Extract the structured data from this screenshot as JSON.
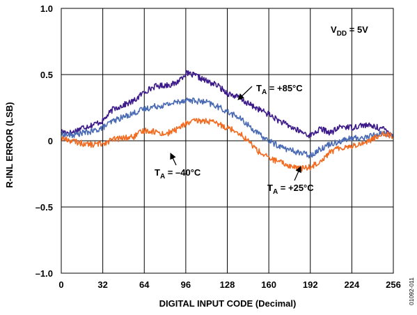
{
  "chart_data": {
    "type": "line",
    "title": "",
    "xlabel": "DIGITAL INPUT CODE (Decimal)",
    "ylabel": "R-INL ERROR (LSB)",
    "xlim": [
      0,
      256
    ],
    "ylim": [
      -1.0,
      1.0
    ],
    "grid": true,
    "x_ticks": [
      0,
      32,
      64,
      96,
      128,
      160,
      192,
      224,
      256
    ],
    "x_tick_labels": [
      "0",
      "32",
      "64",
      "96",
      "128",
      "160",
      "192",
      "224",
      "256"
    ],
    "y_ticks": [
      1.0,
      0.5,
      0,
      -0.5,
      -1.0
    ],
    "y_tick_labels": [
      "1.0",
      "0.5",
      "0",
      "–0.5",
      "–1.0"
    ],
    "colors": {
      "t85": "#3d1a8a",
      "t25": "#4a6ab4",
      "tm40": "#f26b21"
    },
    "series": [
      {
        "color_key": "t85",
        "x": [
          0,
          8,
          16,
          24,
          32,
          40,
          48,
          56,
          64,
          72,
          80,
          88,
          96,
          104,
          112,
          120,
          128,
          136,
          144,
          152,
          160,
          168,
          176,
          184,
          192,
          200,
          208,
          216,
          224,
          232,
          240,
          248,
          256
        ],
        "y": [
          0.07,
          0.06,
          0.1,
          0.12,
          0.15,
          0.24,
          0.27,
          0.3,
          0.37,
          0.41,
          0.42,
          0.43,
          0.51,
          0.49,
          0.45,
          0.42,
          0.36,
          0.33,
          0.28,
          0.24,
          0.2,
          0.15,
          0.11,
          0.07,
          0.04,
          0.09,
          0.06,
          0.11,
          0.1,
          0.12,
          0.11,
          0.09,
          0.05
        ]
      },
      {
        "color_key": "t25",
        "x": [
          0,
          8,
          16,
          24,
          32,
          40,
          48,
          56,
          64,
          72,
          80,
          88,
          96,
          104,
          112,
          120,
          128,
          136,
          144,
          152,
          160,
          168,
          176,
          184,
          192,
          200,
          208,
          216,
          224,
          232,
          240,
          248,
          256
        ],
        "y": [
          0.05,
          0.04,
          0.06,
          0.07,
          0.1,
          0.15,
          0.18,
          0.21,
          0.24,
          0.26,
          0.27,
          0.29,
          0.31,
          0.3,
          0.29,
          0.26,
          0.22,
          0.18,
          0.12,
          0.05,
          0.0,
          -0.04,
          -0.07,
          -0.09,
          -0.11,
          -0.06,
          -0.02,
          0.0,
          0.02,
          0.02,
          0.04,
          0.06,
          0.03
        ]
      },
      {
        "color_key": "tm40",
        "x": [
          0,
          8,
          16,
          24,
          32,
          40,
          48,
          56,
          64,
          72,
          80,
          88,
          96,
          104,
          112,
          120,
          128,
          136,
          144,
          152,
          160,
          168,
          176,
          184,
          192,
          200,
          208,
          216,
          224,
          232,
          240,
          248,
          256
        ],
        "y": [
          0.02,
          0.0,
          -0.02,
          -0.03,
          -0.02,
          0.01,
          0.02,
          0.03,
          0.08,
          0.07,
          0.05,
          0.08,
          0.13,
          0.15,
          0.15,
          0.13,
          0.1,
          0.07,
          0.0,
          -0.08,
          -0.13,
          -0.16,
          -0.19,
          -0.21,
          -0.2,
          -0.15,
          -0.08,
          -0.05,
          -0.04,
          -0.02,
          0.01,
          0.06,
          0.03
        ]
      }
    ],
    "annotations": {
      "vdd": {
        "main": "V",
        "sub": "DD",
        "rest": " = 5V"
      },
      "t85": {
        "main": "T",
        "sub": "A",
        "rest": " = +85°C"
      },
      "t25": {
        "main": "T",
        "sub": "A",
        "rest": " = +25°C"
      },
      "tm40": {
        "main": "T",
        "sub": "A",
        "rest": " = –40°C"
      }
    },
    "figure_id": "01092-011"
  }
}
